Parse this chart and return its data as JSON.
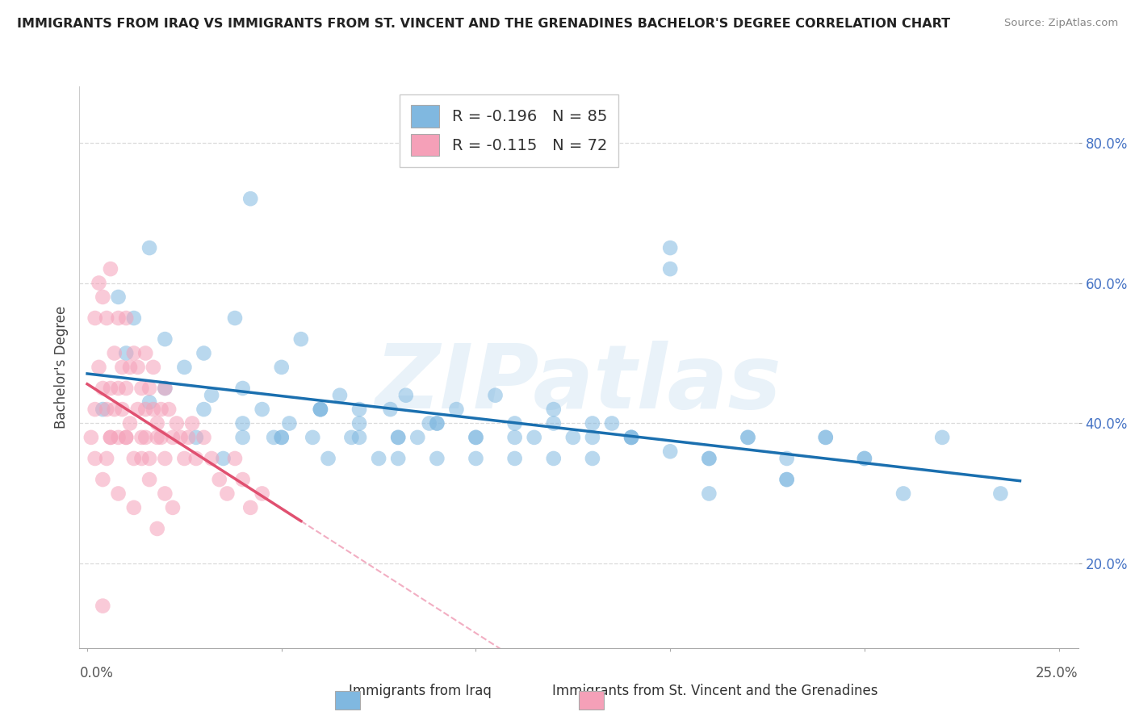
{
  "title": "IMMIGRANTS FROM IRAQ VS IMMIGRANTS FROM ST. VINCENT AND THE GRENADINES BACHELOR'S DEGREE CORRELATION CHART",
  "source": "Source: ZipAtlas.com",
  "xlabel_blue": "Immigrants from Iraq",
  "xlabel_pink": "Immigrants from St. Vincent and the Grenadines",
  "ylabel": "Bachelor's Degree",
  "watermark": "ZIPatlas",
  "legend_blue_r": "-0.196",
  "legend_blue_n": "85",
  "legend_pink_r": "-0.115",
  "legend_pink_n": "72",
  "xlim": [
    -0.002,
    0.255
  ],
  "ylim": [
    0.08,
    0.88
  ],
  "ytick_vals": [
    0.2,
    0.4,
    0.6,
    0.8
  ],
  "blue_color": "#80b8e0",
  "pink_color": "#f5a0b8",
  "blue_line_color": "#1a6faf",
  "pink_line_color": "#e05070",
  "dashed_line_color": "#f0a0b8",
  "blue_scatter_x": [
    0.004,
    0.008,
    0.012,
    0.016,
    0.016,
    0.02,
    0.025,
    0.028,
    0.03,
    0.032,
    0.035,
    0.038,
    0.04,
    0.042,
    0.045,
    0.048,
    0.05,
    0.052,
    0.055,
    0.058,
    0.06,
    0.062,
    0.065,
    0.068,
    0.07,
    0.075,
    0.078,
    0.08,
    0.082,
    0.085,
    0.088,
    0.09,
    0.095,
    0.1,
    0.105,
    0.11,
    0.115,
    0.12,
    0.125,
    0.13,
    0.135,
    0.14,
    0.15,
    0.16,
    0.17,
    0.18,
    0.19,
    0.2,
    0.21,
    0.22,
    0.235,
    0.01,
    0.02,
    0.03,
    0.04,
    0.05,
    0.06,
    0.07,
    0.08,
    0.09,
    0.1,
    0.11,
    0.12,
    0.13,
    0.14,
    0.15,
    0.16,
    0.17,
    0.18,
    0.19,
    0.2,
    0.04,
    0.06,
    0.08,
    0.1,
    0.12,
    0.14,
    0.16,
    0.18,
    0.05,
    0.07,
    0.09,
    0.11,
    0.13,
    0.15
  ],
  "blue_scatter_y": [
    0.42,
    0.58,
    0.55,
    0.65,
    0.43,
    0.52,
    0.48,
    0.38,
    0.5,
    0.44,
    0.35,
    0.55,
    0.45,
    0.72,
    0.42,
    0.38,
    0.48,
    0.4,
    0.52,
    0.38,
    0.42,
    0.35,
    0.44,
    0.38,
    0.4,
    0.35,
    0.42,
    0.38,
    0.44,
    0.38,
    0.4,
    0.35,
    0.42,
    0.38,
    0.44,
    0.4,
    0.38,
    0.42,
    0.38,
    0.35,
    0.4,
    0.38,
    0.65,
    0.35,
    0.38,
    0.32,
    0.38,
    0.35,
    0.3,
    0.38,
    0.3,
    0.5,
    0.45,
    0.42,
    0.4,
    0.38,
    0.42,
    0.38,
    0.35,
    0.4,
    0.38,
    0.38,
    0.35,
    0.4,
    0.38,
    0.62,
    0.35,
    0.38,
    0.32,
    0.38,
    0.35,
    0.38,
    0.42,
    0.38,
    0.35,
    0.4,
    0.38,
    0.3,
    0.35,
    0.38,
    0.42,
    0.4,
    0.35,
    0.38,
    0.36
  ],
  "pink_scatter_x": [
    0.001,
    0.002,
    0.002,
    0.003,
    0.003,
    0.004,
    0.004,
    0.005,
    0.005,
    0.005,
    0.006,
    0.006,
    0.006,
    0.007,
    0.007,
    0.008,
    0.008,
    0.008,
    0.009,
    0.009,
    0.01,
    0.01,
    0.01,
    0.011,
    0.011,
    0.012,
    0.012,
    0.013,
    0.013,
    0.014,
    0.014,
    0.015,
    0.015,
    0.015,
    0.016,
    0.016,
    0.017,
    0.017,
    0.018,
    0.018,
    0.019,
    0.019,
    0.02,
    0.02,
    0.021,
    0.022,
    0.023,
    0.024,
    0.025,
    0.026,
    0.027,
    0.028,
    0.03,
    0.032,
    0.034,
    0.036,
    0.038,
    0.04,
    0.042,
    0.045,
    0.002,
    0.004,
    0.006,
    0.008,
    0.01,
    0.012,
    0.014,
    0.016,
    0.018,
    0.02,
    0.022,
    0.004
  ],
  "pink_scatter_y": [
    0.38,
    0.55,
    0.42,
    0.6,
    0.48,
    0.45,
    0.58,
    0.42,
    0.55,
    0.35,
    0.45,
    0.62,
    0.38,
    0.42,
    0.5,
    0.55,
    0.38,
    0.45,
    0.42,
    0.48,
    0.55,
    0.38,
    0.45,
    0.4,
    0.48,
    0.5,
    0.35,
    0.42,
    0.48,
    0.38,
    0.45,
    0.5,
    0.38,
    0.42,
    0.45,
    0.35,
    0.42,
    0.48,
    0.38,
    0.4,
    0.42,
    0.38,
    0.45,
    0.35,
    0.42,
    0.38,
    0.4,
    0.38,
    0.35,
    0.38,
    0.4,
    0.35,
    0.38,
    0.35,
    0.32,
    0.3,
    0.35,
    0.32,
    0.28,
    0.3,
    0.35,
    0.32,
    0.38,
    0.3,
    0.38,
    0.28,
    0.35,
    0.32,
    0.25,
    0.3,
    0.28,
    0.14
  ]
}
